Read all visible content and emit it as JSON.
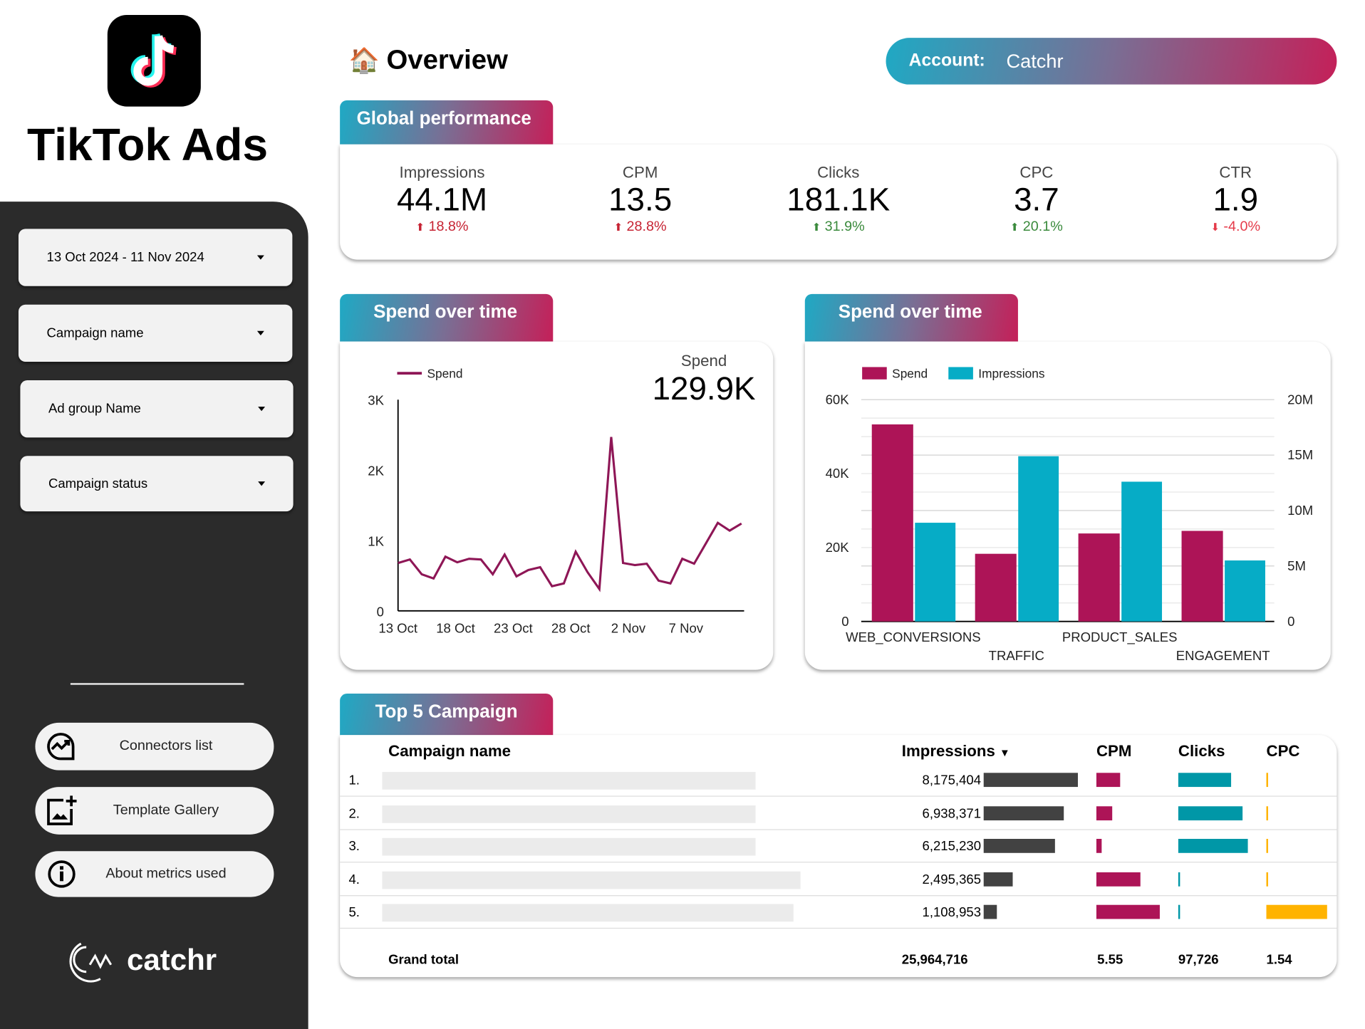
{
  "brand": {
    "title": "TikTok Ads",
    "logo": "tiktok-logo",
    "footer_logo": "catchr"
  },
  "filters": [
    {
      "label": "13 Oct 2024 - 11 Nov 2024"
    },
    {
      "label": "Campaign name"
    },
    {
      "label": "Ad group Name"
    },
    {
      "label": "Campaign status"
    }
  ],
  "nav": [
    {
      "label": "Connectors list",
      "icon": "chart-trend-icon"
    },
    {
      "label": "Template Gallery",
      "icon": "add-image-icon"
    },
    {
      "label": "About metrics used",
      "icon": "info-icon"
    }
  ],
  "header": {
    "title": "Overview",
    "icon": "house-icon",
    "account_label": "Account:",
    "account_value": "Catchr"
  },
  "colors": {
    "spend": "#ad1457",
    "impressions": "#06acc6",
    "dark_bar": "#424242",
    "cpc": "#ffb300",
    "red": "#c62232",
    "green": "#3a8a3c"
  },
  "global": {
    "tab": "Global performance",
    "kpis": [
      {
        "label": "Impressions",
        "value": "44.1M",
        "delta": "18.8%",
        "dir": "up",
        "tone": "up-bad"
      },
      {
        "label": "CPM",
        "value": "13.5",
        "delta": "28.8%",
        "dir": "up",
        "tone": "up-bad"
      },
      {
        "label": "Clicks",
        "value": "181.1K",
        "delta": "31.9%",
        "dir": "up",
        "tone": "up-good"
      },
      {
        "label": "CPC",
        "value": "3.7",
        "delta": "20.1%",
        "dir": "up",
        "tone": "up-good"
      },
      {
        "label": "CTR",
        "value": "1.9",
        "delta": "-4.0%",
        "dir": "down",
        "tone": "down-bad"
      }
    ]
  },
  "line_card": {
    "tab": "Spend over time",
    "scorecard_label": "Spend",
    "scorecard_value": "129.9K"
  },
  "bar_card": {
    "tab": "Spend over time"
  },
  "chart_data": [
    {
      "type": "line",
      "legend": [
        "Spend"
      ],
      "ylim": [
        0,
        3000
      ],
      "yticks": [
        "0",
        "1K",
        "2K",
        "3K"
      ],
      "xticks": [
        "13 Oct",
        "18 Oct",
        "23 Oct",
        "28 Oct",
        "2 Nov",
        "7 Nov"
      ],
      "x_start": "2024-10-13",
      "x_end": "2024-11-11",
      "series": [
        {
          "name": "Spend",
          "values": [
            680,
            730,
            520,
            460,
            770,
            690,
            740,
            730,
            520,
            800,
            490,
            580,
            620,
            350,
            390,
            840,
            550,
            310,
            2470,
            680,
            650,
            670,
            430,
            390,
            740,
            670,
            960,
            1250,
            1140,
            1240
          ]
        }
      ]
    },
    {
      "type": "bar",
      "categories": [
        "WEB_CONVERSIONS",
        "TRAFFIC",
        "PRODUCT_SALES",
        "ENGAGEMENT"
      ],
      "series": [
        {
          "name": "Spend",
          "axis": "left",
          "values": [
            53300,
            18300,
            23800,
            24500
          ]
        },
        {
          "name": "Impressions",
          "axis": "right",
          "values": [
            8900000,
            14900000,
            12600000,
            5500000
          ]
        }
      ],
      "ylim_left": [
        0,
        60000
      ],
      "yticks_left": [
        "0",
        "20K",
        "40K",
        "60K"
      ],
      "ylim_right": [
        0,
        20000000
      ],
      "yticks_right": [
        "0",
        "5M",
        "10M",
        "15M",
        "20M"
      ],
      "legend": "top-left"
    }
  ],
  "table": {
    "tab": "Top 5 Campaign",
    "headers": [
      "Campaign name",
      "Impressions",
      "CPM",
      "Clicks",
      "CPC"
    ],
    "sort_icon": "sort-desc-icon",
    "rows": [
      {
        "rank": "1.",
        "impressions": "8,175,404",
        "impr_value": 8175404,
        "cpm_fill": 0.38,
        "clicks_fill": 0.76,
        "cpc_fill": 0.02
      },
      {
        "rank": "2.",
        "impressions": "6,938,371",
        "impr_value": 6938371,
        "cpm_fill": 0.25,
        "clicks_fill": 0.92,
        "cpc_fill": 0.02
      },
      {
        "rank": "3.",
        "impressions": "6,215,230",
        "impr_value": 6215230,
        "cpm_fill": 0.08,
        "clicks_fill": 1.0,
        "cpc_fill": 0.02
      },
      {
        "rank": "4.",
        "impressions": "2,495,365",
        "impr_value": 2495365,
        "cpm_fill": 0.7,
        "clicks_fill": 0.02,
        "cpc_fill": 0.02
      },
      {
        "rank": "5.",
        "impressions": "1,108,953",
        "impr_value": 1108953,
        "cpm_fill": 1.0,
        "clicks_fill": 0.02,
        "cpc_fill": 1.0
      }
    ],
    "total": {
      "label": "Grand total",
      "impressions": "25,964,716",
      "cpm": "5.55",
      "clicks": "97,726",
      "cpc": "1.54"
    }
  }
}
